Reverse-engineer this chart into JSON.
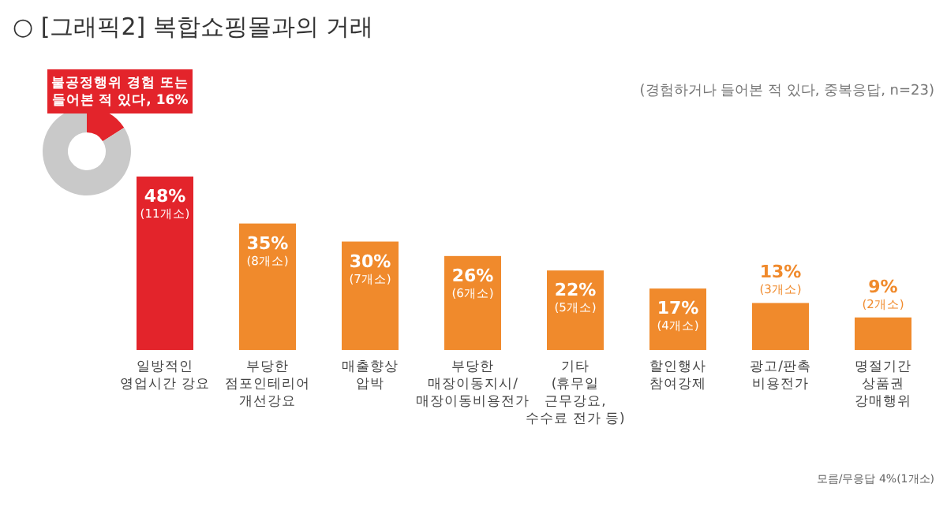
{
  "chart_data": [
    {
      "type": "donut",
      "categories": [
        "불공정행위 경험 또는 들어본 적 있다",
        null
      ],
      "values": [
        16,
        84
      ],
      "colors": [
        "#e3242b",
        "#c9c9c9"
      ],
      "value_labels": [
        "16%",
        null
      ],
      "title": "○ [그래픽2] 복합쇼핑몰과의 거래"
    },
    {
      "type": "bar",
      "subtitle": "(경험하거나 들어본 적 있다, 중복응답, n=23)",
      "categories": [
        "일방적인\n영업시간 강요",
        "부당한\n점포인테리어\n개선강요",
        "매출향상\n압박",
        "부당한\n매장이동지시/\n매장이동비용전가",
        "기타\n(휴무일\n근무강요,\n수수료 전가 등)",
        "할인행사\n참여강제",
        "광고/판촉\n비용전가",
        "명절기간\n상품권\n강매행위"
      ],
      "values": [
        48,
        35,
        30,
        26,
        22,
        17,
        13,
        9
      ],
      "colors": [
        "#e3242b",
        "#f08a2c",
        "#f08a2c",
        "#f08a2c",
        "#f08a2c",
        "#f08a2c",
        "#f08a2c",
        "#f08a2c"
      ],
      "value_labels": [
        "48%\n(11개소)",
        "35%\n(8개소)",
        "30%\n(7개소)",
        "26%\n(6개소)",
        "22%\n(5개소)",
        "17%\n(4개소)",
        "13%\n(3개소)",
        "9%\n(2개소)"
      ],
      "ylim": [
        0,
        48
      ],
      "annotations": [
        "모름/무응답 4%(1개소)"
      ]
    }
  ]
}
